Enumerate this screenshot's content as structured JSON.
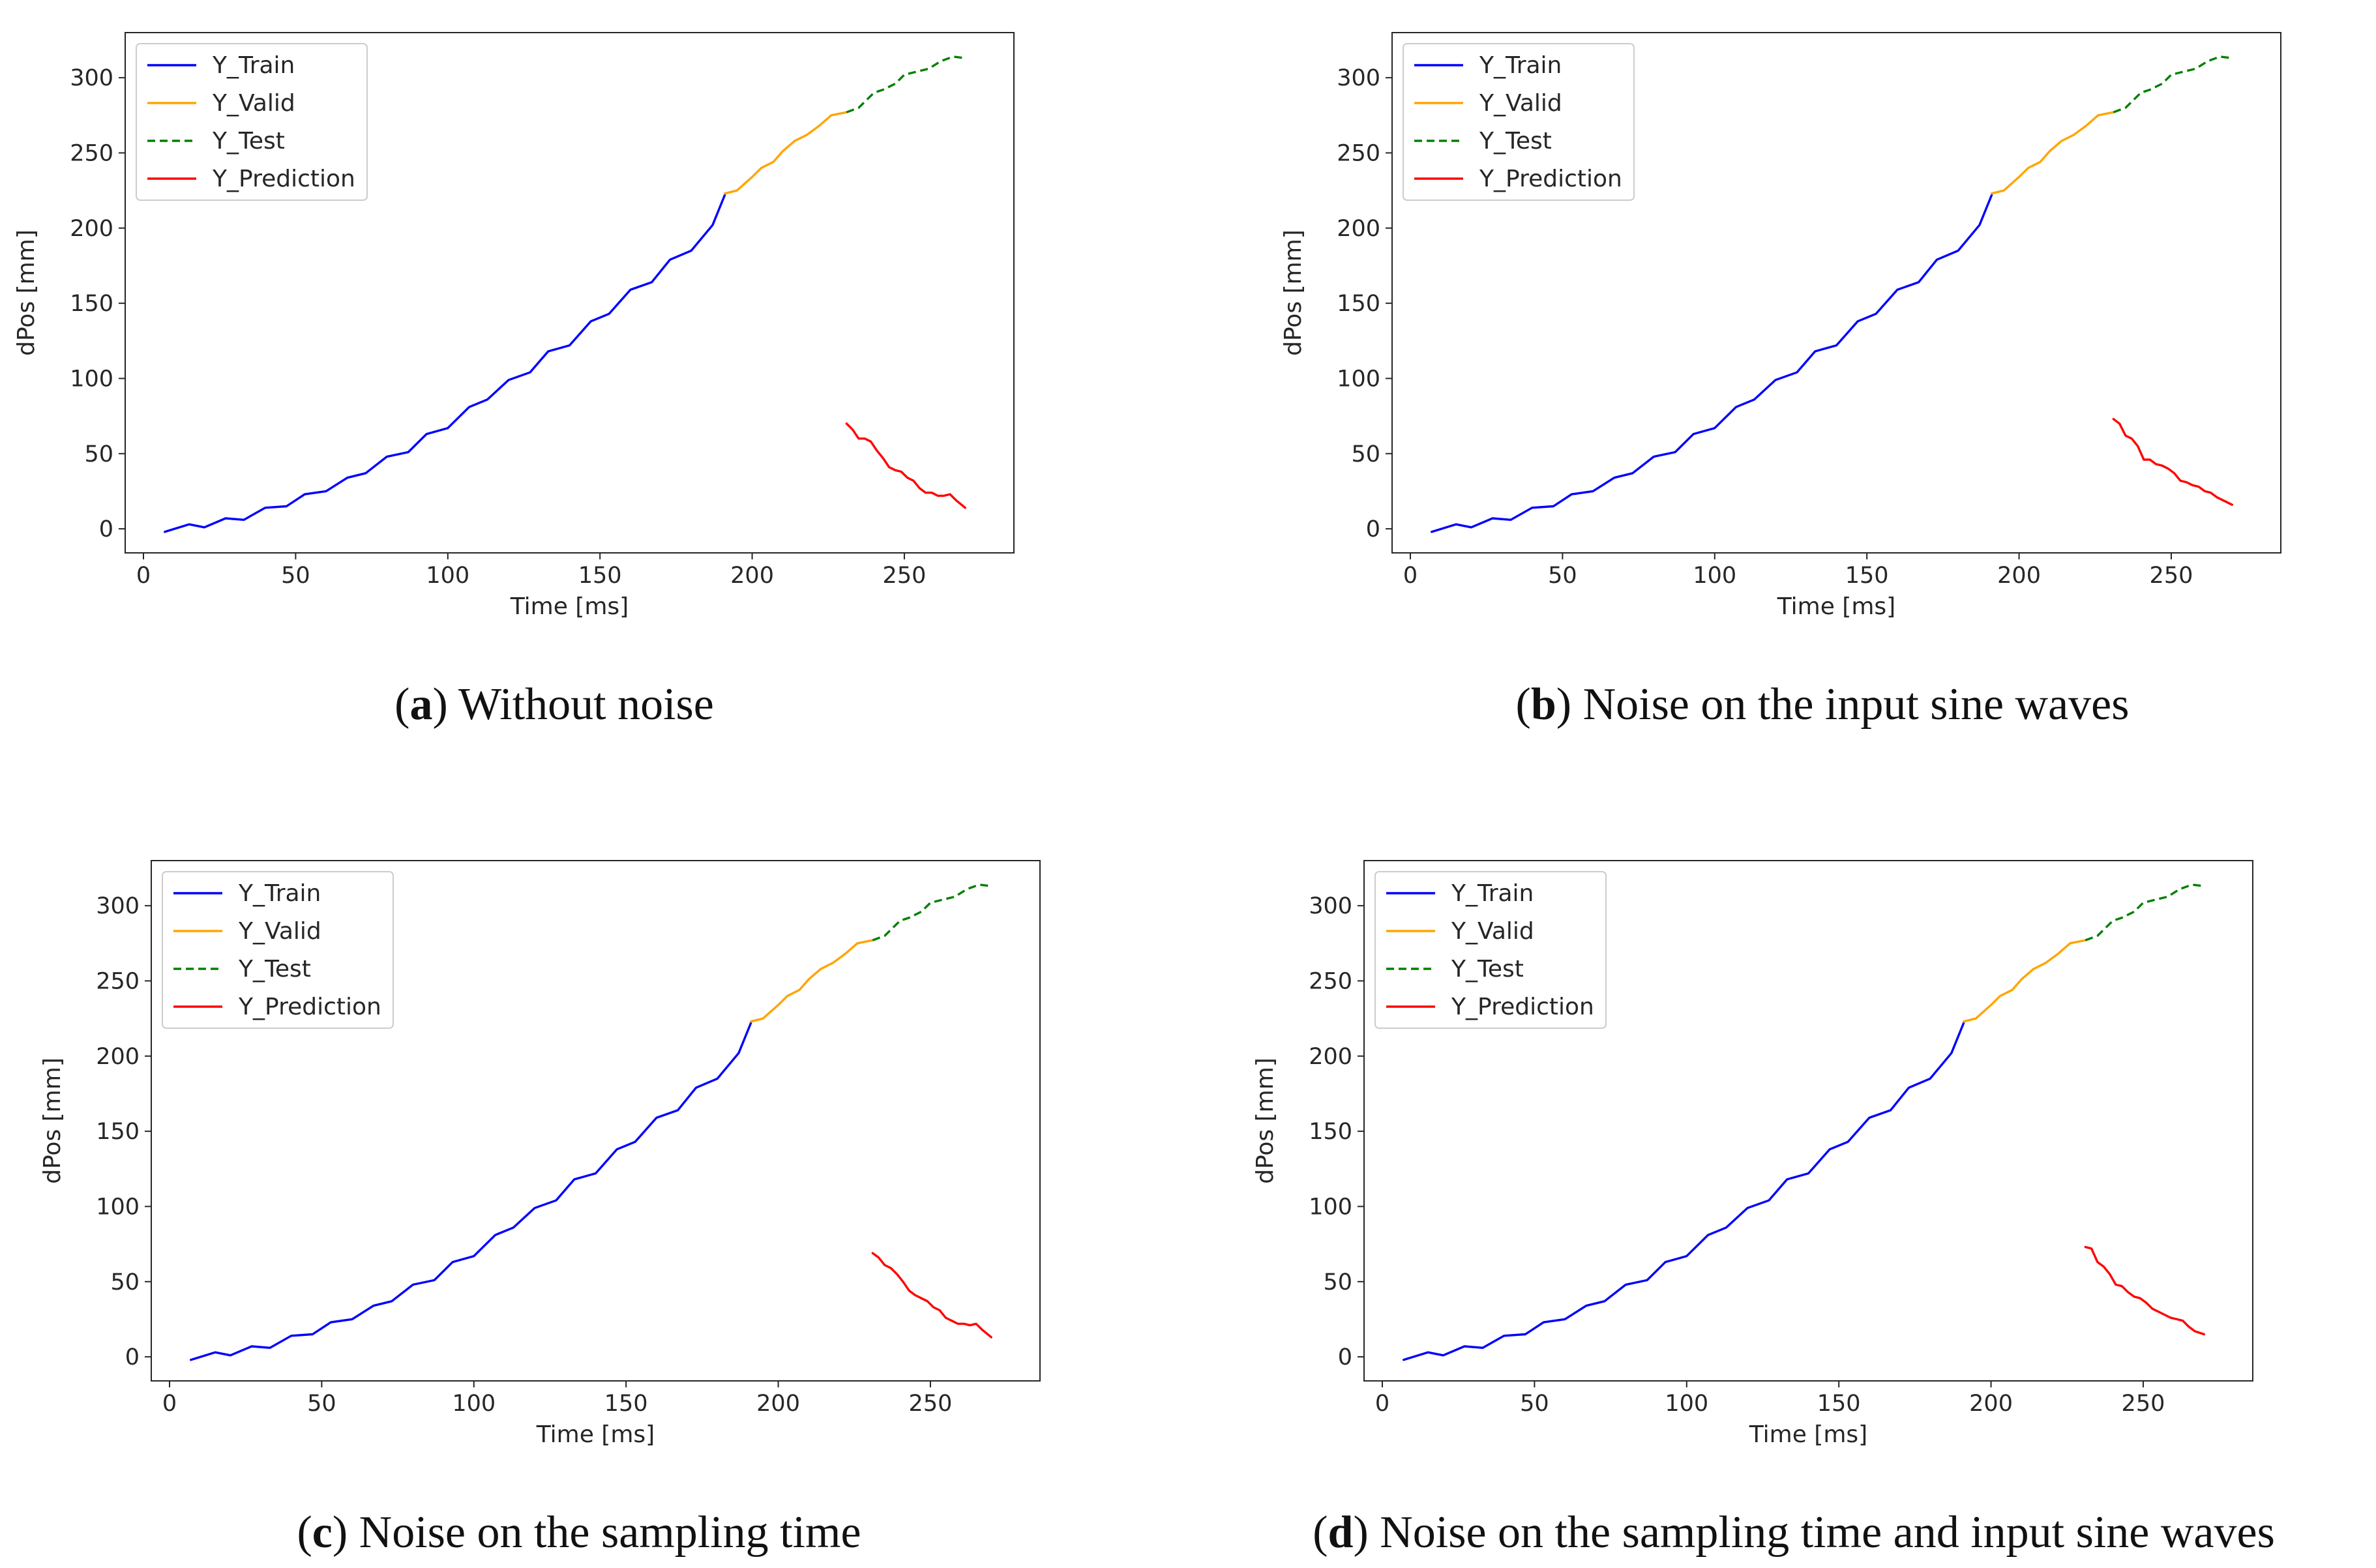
{
  "figure": {
    "panels": [
      {
        "letter": "a",
        "caption": "Without noise"
      },
      {
        "letter": "b",
        "caption": "Noise on the input sine waves"
      },
      {
        "letter": "c",
        "caption": "Noise on the sampling time"
      },
      {
        "letter": "d",
        "caption": "Noise on the sampling time and input sine waves"
      }
    ]
  },
  "colors": {
    "train": "#0000ff",
    "valid": "#ffa500",
    "test": "#008000",
    "prediction": "#ff0000"
  },
  "chart_data": [
    {
      "type": "line",
      "panel": "a",
      "title": "",
      "xlabel": "Time [ms]",
      "ylabel": "dPos [mm]",
      "xlim": [
        -6,
        286
      ],
      "ylim": [
        -16,
        330
      ],
      "xticks": [
        0,
        50,
        100,
        150,
        200,
        250
      ],
      "yticks": [
        0,
        50,
        100,
        150,
        200,
        250,
        300
      ],
      "legend_position": "top-left",
      "grid": false,
      "series": [
        {
          "name": "Y_Train",
          "style": "solid",
          "color": "#0000ff",
          "x": [
            7,
            15,
            20,
            27,
            33,
            40,
            47,
            53,
            60,
            67,
            73,
            80,
            87,
            93,
            100,
            107,
            113,
            120,
            127,
            133,
            140,
            147,
            153,
            160,
            167,
            173,
            180,
            187,
            191
          ],
          "y": [
            -2,
            3,
            1,
            7,
            6,
            14,
            15,
            23,
            25,
            34,
            37,
            48,
            51,
            63,
            67,
            81,
            86,
            99,
            104,
            118,
            122,
            138,
            143,
            159,
            164,
            179,
            185,
            202,
            222
          ]
        },
        {
          "name": "Y_Valid",
          "style": "solid",
          "color": "#ffa500",
          "x": [
            191,
            195,
            200,
            203,
            207,
            210,
            214,
            218,
            222,
            226,
            231
          ],
          "y": [
            223,
            225,
            234,
            240,
            244,
            251,
            258,
            262,
            268,
            275,
            277
          ]
        },
        {
          "name": "Y_Test",
          "style": "dashed",
          "color": "#008000",
          "x": [
            231,
            235,
            240,
            243,
            247,
            250,
            254,
            258,
            262,
            266,
            270
          ],
          "y": [
            277,
            280,
            290,
            292,
            296,
            302,
            304,
            306,
            311,
            314,
            313
          ]
        },
        {
          "name": "Y_Prediction",
          "style": "solid",
          "color": "#ff0000",
          "x": [
            231,
            233,
            235,
            237,
            239,
            241,
            243,
            245,
            247,
            249,
            251,
            253,
            255,
            257,
            259,
            261,
            263,
            265,
            267,
            270
          ],
          "y": [
            70,
            66,
            60,
            60,
            58,
            52,
            47,
            41,
            39,
            38,
            34,
            32,
            27,
            24,
            24,
            22,
            22,
            23,
            19,
            14
          ]
        }
      ]
    },
    {
      "type": "line",
      "panel": "b",
      "title": "",
      "xlabel": "Time [ms]",
      "ylabel": "dPos [mm]",
      "xlim": [
        -6,
        286
      ],
      "ylim": [
        -16,
        330
      ],
      "xticks": [
        0,
        50,
        100,
        150,
        200,
        250
      ],
      "yticks": [
        0,
        50,
        100,
        150,
        200,
        250,
        300
      ],
      "legend_position": "top-left",
      "grid": false,
      "series": [
        {
          "name": "Y_Train",
          "style": "solid",
          "color": "#0000ff",
          "x": [
            7,
            15,
            20,
            27,
            33,
            40,
            47,
            53,
            60,
            67,
            73,
            80,
            87,
            93,
            100,
            107,
            113,
            120,
            127,
            133,
            140,
            147,
            153,
            160,
            167,
            173,
            180,
            187,
            191
          ],
          "y": [
            -2,
            3,
            1,
            7,
            6,
            14,
            15,
            23,
            25,
            34,
            37,
            48,
            51,
            63,
            67,
            81,
            86,
            99,
            104,
            118,
            122,
            138,
            143,
            159,
            164,
            179,
            185,
            202,
            222
          ]
        },
        {
          "name": "Y_Valid",
          "style": "solid",
          "color": "#ffa500",
          "x": [
            191,
            195,
            200,
            203,
            207,
            210,
            214,
            218,
            222,
            226,
            231
          ],
          "y": [
            223,
            225,
            234,
            240,
            244,
            251,
            258,
            262,
            268,
            275,
            277
          ]
        },
        {
          "name": "Y_Test",
          "style": "dashed",
          "color": "#008000",
          "x": [
            231,
            235,
            240,
            243,
            247,
            250,
            254,
            258,
            262,
            266,
            270
          ],
          "y": [
            277,
            280,
            290,
            292,
            296,
            302,
            304,
            306,
            311,
            314,
            313
          ]
        },
        {
          "name": "Y_Prediction",
          "style": "solid",
          "color": "#ff0000",
          "x": [
            231,
            233,
            235,
            237,
            239,
            241,
            243,
            245,
            247,
            249,
            251,
            253,
            255,
            257,
            259,
            261,
            263,
            265,
            267,
            270
          ],
          "y": [
            73,
            70,
            62,
            60,
            55,
            46,
            46,
            43,
            42,
            40,
            37,
            32,
            31,
            29,
            28,
            25,
            24,
            21,
            19,
            16
          ]
        }
      ]
    },
    {
      "type": "line",
      "panel": "c",
      "title": "",
      "xlabel": "Time [ms]",
      "ylabel": "dPos [mm]",
      "xlim": [
        -6,
        286
      ],
      "ylim": [
        -16,
        330
      ],
      "xticks": [
        0,
        50,
        100,
        150,
        200,
        250
      ],
      "yticks": [
        0,
        50,
        100,
        150,
        200,
        250,
        300
      ],
      "legend_position": "top-left",
      "grid": false,
      "series": [
        {
          "name": "Y_Train",
          "style": "solid",
          "color": "#0000ff",
          "x": [
            7,
            15,
            20,
            27,
            33,
            40,
            47,
            53,
            60,
            67,
            73,
            80,
            87,
            93,
            100,
            107,
            113,
            120,
            127,
            133,
            140,
            147,
            153,
            160,
            167,
            173,
            180,
            187,
            191
          ],
          "y": [
            -2,
            3,
            1,
            7,
            6,
            14,
            15,
            23,
            25,
            34,
            37,
            48,
            51,
            63,
            67,
            81,
            86,
            99,
            104,
            118,
            122,
            138,
            143,
            159,
            164,
            179,
            185,
            202,
            222
          ]
        },
        {
          "name": "Y_Valid",
          "style": "solid",
          "color": "#ffa500",
          "x": [
            191,
            195,
            200,
            203,
            207,
            210,
            214,
            218,
            222,
            226,
            231
          ],
          "y": [
            223,
            225,
            234,
            240,
            244,
            251,
            258,
            262,
            268,
            275,
            277
          ]
        },
        {
          "name": "Y_Test",
          "style": "dashed",
          "color": "#008000",
          "x": [
            231,
            235,
            240,
            243,
            247,
            250,
            254,
            258,
            262,
            266,
            270
          ],
          "y": [
            277,
            280,
            290,
            292,
            296,
            302,
            304,
            306,
            311,
            314,
            313
          ]
        },
        {
          "name": "Y_Prediction",
          "style": "solid",
          "color": "#ff0000",
          "x": [
            231,
            233,
            235,
            237,
            239,
            241,
            243,
            245,
            247,
            249,
            251,
            253,
            255,
            257,
            259,
            261,
            263,
            265,
            267,
            270
          ],
          "y": [
            69,
            66,
            61,
            59,
            55,
            50,
            44,
            41,
            39,
            37,
            33,
            31,
            26,
            24,
            22,
            22,
            21,
            22,
            18,
            13
          ]
        }
      ]
    },
    {
      "type": "line",
      "panel": "d",
      "title": "",
      "xlabel": "Time [ms]",
      "ylabel": "dPos [mm]",
      "xlim": [
        -6,
        286
      ],
      "ylim": [
        -16,
        330
      ],
      "xticks": [
        0,
        50,
        100,
        150,
        200,
        250
      ],
      "yticks": [
        0,
        50,
        100,
        150,
        200,
        250,
        300
      ],
      "legend_position": "top-left",
      "grid": false,
      "series": [
        {
          "name": "Y_Train",
          "style": "solid",
          "color": "#0000ff",
          "x": [
            7,
            15,
            20,
            27,
            33,
            40,
            47,
            53,
            60,
            67,
            73,
            80,
            87,
            93,
            100,
            107,
            113,
            120,
            127,
            133,
            140,
            147,
            153,
            160,
            167,
            173,
            180,
            187,
            191
          ],
          "y": [
            -2,
            3,
            1,
            7,
            6,
            14,
            15,
            23,
            25,
            34,
            37,
            48,
            51,
            63,
            67,
            81,
            86,
            99,
            104,
            118,
            122,
            138,
            143,
            159,
            164,
            179,
            185,
            202,
            222
          ]
        },
        {
          "name": "Y_Valid",
          "style": "solid",
          "color": "#ffa500",
          "x": [
            191,
            195,
            200,
            203,
            207,
            210,
            214,
            218,
            222,
            226,
            231
          ],
          "y": [
            223,
            225,
            234,
            240,
            244,
            251,
            258,
            262,
            268,
            275,
            277
          ]
        },
        {
          "name": "Y_Test",
          "style": "dashed",
          "color": "#008000",
          "x": [
            231,
            235,
            240,
            243,
            247,
            250,
            254,
            258,
            262,
            266,
            270
          ],
          "y": [
            277,
            280,
            290,
            292,
            296,
            302,
            304,
            306,
            311,
            314,
            313
          ]
        },
        {
          "name": "Y_Prediction",
          "style": "solid",
          "color": "#ff0000",
          "x": [
            231,
            233,
            235,
            237,
            239,
            241,
            243,
            245,
            247,
            249,
            251,
            253,
            255,
            257,
            259,
            261,
            263,
            265,
            267,
            270
          ],
          "y": [
            73,
            72,
            63,
            60,
            55,
            48,
            47,
            43,
            40,
            39,
            36,
            32,
            30,
            28,
            26,
            25,
            24,
            20,
            17,
            15
          ]
        }
      ]
    }
  ]
}
